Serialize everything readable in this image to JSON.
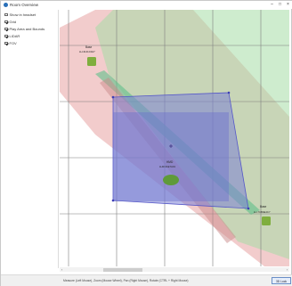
{
  "window": {
    "title": "Room Overview",
    "icon": "globe-icon"
  },
  "sidebar": {
    "options": [
      {
        "label": "Show in headset",
        "checked": false
      },
      {
        "label": "Grid",
        "checked": true
      },
      {
        "label": "Play Area and Bounds",
        "checked": true
      },
      {
        "label": "LIDAR",
        "checked": true
      },
      {
        "label": "FOV",
        "checked": true
      }
    ]
  },
  "map": {
    "colors": {
      "pink_fov": "#e7a3a3",
      "green_fov": "#a6dca6",
      "play_area_fill": "#7c82d6",
      "play_area_stroke": "#5557c8",
      "grid": "#7f7f7f",
      "device": "#7fae3e"
    },
    "devices": [
      {
        "id": "lighthouse-a",
        "label": "Base",
        "serial": "LH-3141C0A7"
      },
      {
        "id": "lighthouse-b",
        "label": "Base",
        "serial": "LH-7CB4E4C7"
      },
      {
        "id": "hmd",
        "label": "HMD",
        "serial": "LHR-31E7A01"
      }
    ]
  },
  "statusbar": {
    "hint": "Measure (Left Mouse), Zoom (Mouse Wheel), Pan (Right Mouse), Rotate (CTRL + Right Mouse)",
    "button_label": "3D Lock"
  }
}
